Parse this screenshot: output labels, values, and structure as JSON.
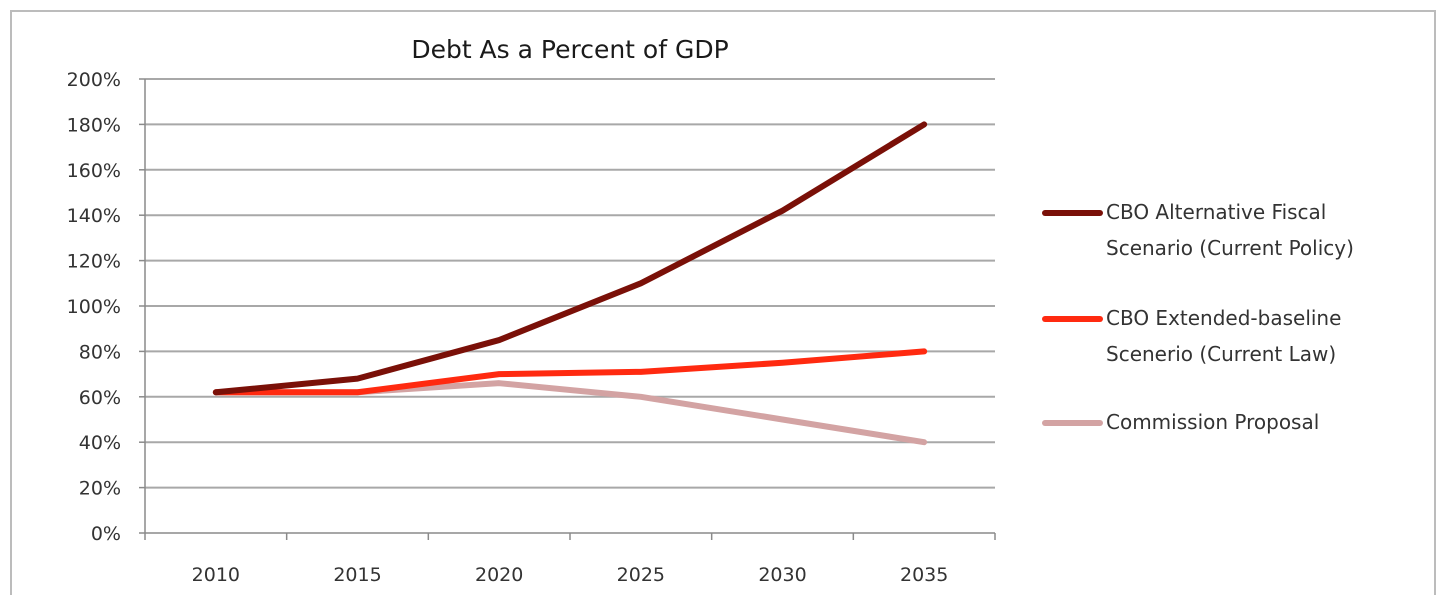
{
  "chart_data": {
    "type": "line",
    "title": "Debt As a Percent of GDP",
    "xlabel": "",
    "ylabel": "",
    "x": [
      "2010",
      "2015",
      "2020",
      "2025",
      "2030",
      "2035"
    ],
    "ylim": [
      0,
      200
    ],
    "yticks": [
      "0%",
      "20%",
      "40%",
      "60%",
      "80%",
      "100%",
      "120%",
      "140%",
      "160%",
      "180%",
      "200%"
    ],
    "grid": "horizontal",
    "legend_position": "right",
    "series": [
      {
        "name_lines": [
          "CBO Alternative Fiscal",
          "Scenario (Current Policy)"
        ],
        "color": "#7a1008",
        "values": [
          62,
          68,
          85,
          110,
          142,
          180
        ]
      },
      {
        "name_lines": [
          "CBO Extended-baseline",
          "Scenerio (Current Law)"
        ],
        "color": "#ff2a10",
        "values": [
          62,
          62,
          70,
          71,
          75,
          80
        ]
      },
      {
        "name_lines": [
          "Commission Proposal"
        ],
        "color": "#d3a3a3",
        "values": [
          62,
          62,
          66,
          60,
          50,
          40
        ]
      }
    ]
  }
}
